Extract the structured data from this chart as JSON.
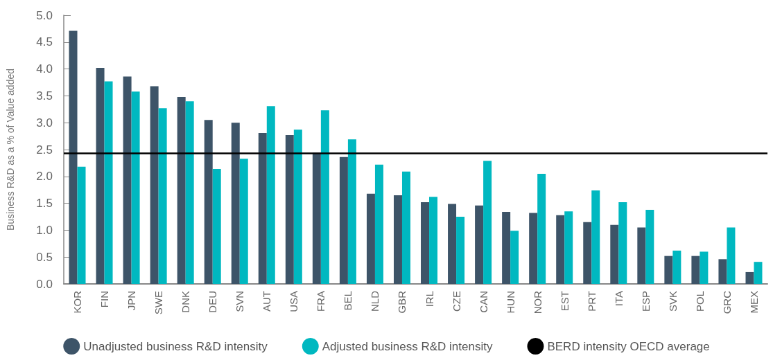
{
  "chart_data": {
    "type": "bar",
    "ylabel": "Business R&D as a % of Value added",
    "categories": [
      "KOR",
      "FIN",
      "JPN",
      "SWE",
      "DNK",
      "DEU",
      "SVN",
      "AUT",
      "USA",
      "FRA",
      "BEL",
      "NLD",
      "GBR",
      "IRL",
      "CZE",
      "CAN",
      "HUN",
      "NOR",
      "EST",
      "PRT",
      "ITA",
      "ESP",
      "SVK",
      "POL",
      "GRC",
      "MEX"
    ],
    "series": [
      {
        "name": "Unadjusted business R&D intensity",
        "color": "#3d5468",
        "values": [
          4.71,
          4.02,
          3.86,
          3.68,
          3.48,
          3.05,
          3.0,
          2.81,
          2.77,
          2.44,
          2.36,
          1.68,
          1.65,
          1.52,
          1.49,
          1.46,
          1.34,
          1.32,
          1.28,
          1.15,
          1.1,
          1.05,
          0.52,
          0.52,
          0.46,
          0.22
        ]
      },
      {
        "name": "Adjusted business R&D intensity",
        "color": "#00b8c0",
        "values": [
          2.18,
          3.77,
          3.58,
          3.27,
          3.4,
          2.14,
          2.33,
          3.31,
          2.87,
          3.23,
          2.69,
          2.22,
          2.09,
          1.62,
          1.25,
          2.29,
          0.99,
          2.05,
          1.35,
          1.74,
          1.52,
          1.38,
          0.62,
          0.6,
          1.05,
          0.41
        ]
      }
    ],
    "ref_lines": [
      {
        "axis": "y",
        "value": 2.43,
        "label": "BERD intensity OECD average",
        "color": "#000000"
      }
    ],
    "ylim": [
      0,
      5
    ],
    "yticks": [
      {
        "value": 0,
        "label": "0.0"
      },
      0.5,
      {
        "value": 1,
        "label": "1.0"
      },
      1.5,
      {
        "value": 2,
        "label": "2.0"
      },
      2.5,
      {
        "value": 3,
        "label": "3.0"
      },
      3.5,
      {
        "value": 4,
        "label": "4.0"
      },
      4.5,
      {
        "value": 5,
        "label": "5.0"
      }
    ],
    "grid": false,
    "legend": "bottom"
  }
}
